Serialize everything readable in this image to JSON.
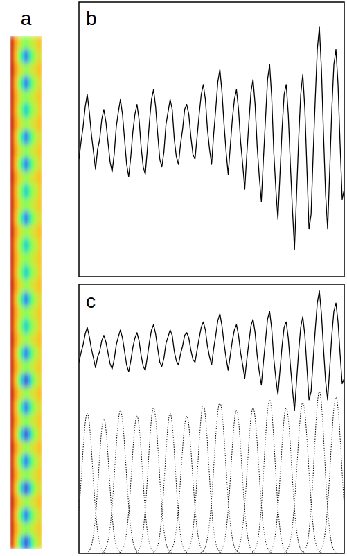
{
  "chart_data": [
    {
      "type": "heatmap",
      "title": "a",
      "zlim": [
        0,
        1
      ],
      "tick_labels": false,
      "cells": [
        [
          0.93,
          0.74,
          0.62,
          0.52,
          0.48,
          0.52,
          0.58,
          0.62,
          0.66
        ],
        [
          0.92,
          0.7,
          0.5,
          0.3,
          0.1,
          0.28,
          0.45,
          0.56,
          0.62
        ],
        [
          0.94,
          0.76,
          0.64,
          0.55,
          0.5,
          0.54,
          0.6,
          0.64,
          0.68
        ],
        [
          0.92,
          0.7,
          0.5,
          0.3,
          0.1,
          0.28,
          0.45,
          0.56,
          0.62
        ],
        [
          0.93,
          0.74,
          0.62,
          0.52,
          0.48,
          0.52,
          0.58,
          0.62,
          0.66
        ],
        [
          0.92,
          0.72,
          0.55,
          0.4,
          0.25,
          0.38,
          0.5,
          0.58,
          0.64
        ],
        [
          0.94,
          0.76,
          0.64,
          0.55,
          0.5,
          0.54,
          0.6,
          0.64,
          0.68
        ],
        [
          0.92,
          0.7,
          0.5,
          0.3,
          0.1,
          0.28,
          0.45,
          0.56,
          0.62
        ],
        [
          0.93,
          0.74,
          0.62,
          0.52,
          0.48,
          0.52,
          0.58,
          0.62,
          0.66
        ],
        [
          0.92,
          0.7,
          0.5,
          0.3,
          0.1,
          0.28,
          0.45,
          0.56,
          0.62
        ],
        [
          0.94,
          0.76,
          0.64,
          0.55,
          0.5,
          0.54,
          0.6,
          0.64,
          0.68
        ],
        [
          0.92,
          0.72,
          0.55,
          0.4,
          0.25,
          0.38,
          0.5,
          0.58,
          0.64
        ],
        [
          0.93,
          0.74,
          0.62,
          0.52,
          0.48,
          0.52,
          0.58,
          0.62,
          0.66
        ],
        [
          0.92,
          0.7,
          0.5,
          0.3,
          0.1,
          0.28,
          0.45,
          0.56,
          0.62
        ],
        [
          0.94,
          0.76,
          0.64,
          0.55,
          0.5,
          0.54,
          0.6,
          0.64,
          0.68
        ],
        [
          0.92,
          0.72,
          0.55,
          0.4,
          0.25,
          0.38,
          0.5,
          0.58,
          0.64
        ],
        [
          0.93,
          0.74,
          0.62,
          0.52,
          0.48,
          0.52,
          0.58,
          0.62,
          0.66
        ],
        [
          0.92,
          0.72,
          0.55,
          0.4,
          0.25,
          0.38,
          0.5,
          0.58,
          0.64
        ],
        [
          0.94,
          0.76,
          0.64,
          0.55,
          0.5,
          0.54,
          0.6,
          0.64,
          0.68
        ],
        [
          0.92,
          0.7,
          0.5,
          0.3,
          0.1,
          0.28,
          0.45,
          0.56,
          0.62
        ],
        [
          0.93,
          0.74,
          0.62,
          0.52,
          0.48,
          0.52,
          0.58,
          0.62,
          0.66
        ],
        [
          0.92,
          0.72,
          0.55,
          0.4,
          0.25,
          0.38,
          0.5,
          0.58,
          0.64
        ],
        [
          0.94,
          0.76,
          0.64,
          0.55,
          0.5,
          0.54,
          0.6,
          0.64,
          0.68
        ],
        [
          0.92,
          0.7,
          0.5,
          0.3,
          0.1,
          0.28,
          0.45,
          0.56,
          0.62
        ],
        [
          0.93,
          0.74,
          0.62,
          0.52,
          0.48,
          0.52,
          0.58,
          0.62,
          0.66
        ],
        [
          0.91,
          0.68,
          0.45,
          0.22,
          0.04,
          0.2,
          0.42,
          0.55,
          0.62
        ],
        [
          0.94,
          0.76,
          0.64,
          0.55,
          0.5,
          0.54,
          0.6,
          0.64,
          0.68
        ],
        [
          0.92,
          0.7,
          0.5,
          0.3,
          0.1,
          0.28,
          0.45,
          0.56,
          0.62
        ],
        [
          0.93,
          0.74,
          0.62,
          0.52,
          0.48,
          0.52,
          0.58,
          0.62,
          0.66
        ],
        [
          0.91,
          0.68,
          0.45,
          0.22,
          0.04,
          0.2,
          0.42,
          0.55,
          0.62
        ],
        [
          0.94,
          0.76,
          0.64,
          0.55,
          0.5,
          0.54,
          0.6,
          0.64,
          0.68
        ],
        [
          0.92,
          0.7,
          0.5,
          0.3,
          0.1,
          0.28,
          0.45,
          0.56,
          0.62
        ],
        [
          0.93,
          0.74,
          0.62,
          0.52,
          0.48,
          0.52,
          0.58,
          0.62,
          0.66
        ],
        [
          0.91,
          0.68,
          0.45,
          0.22,
          0.04,
          0.2,
          0.42,
          0.55,
          0.62
        ],
        [
          0.94,
          0.76,
          0.64,
          0.55,
          0.5,
          0.54,
          0.6,
          0.64,
          0.68
        ],
        [
          0.92,
          0.7,
          0.5,
          0.3,
          0.1,
          0.28,
          0.45,
          0.56,
          0.62
        ],
        [
          0.93,
          0.74,
          0.62,
          0.52,
          0.48,
          0.52,
          0.58,
          0.62,
          0.66
        ],
        [
          0.91,
          0.68,
          0.45,
          0.22,
          0.04,
          0.2,
          0.42,
          0.55,
          0.62
        ]
      ]
    },
    {
      "type": "line",
      "title": "b",
      "xlim": [
        0,
        128
      ],
      "ylim": [
        -5,
        105
      ],
      "tick_labels": false,
      "x": [
        0,
        1,
        2,
        3,
        4,
        5,
        6,
        7,
        8,
        9,
        10,
        11,
        12,
        13,
        14,
        15,
        16,
        17,
        18,
        19,
        20,
        21,
        22,
        23,
        24,
        25,
        26,
        27,
        28,
        29,
        30,
        31,
        32,
        33,
        34,
        35,
        36,
        37,
        38,
        39,
        40,
        41,
        42,
        43,
        44,
        45,
        46,
        47,
        48,
        49,
        50,
        51,
        52,
        53,
        54,
        55,
        56,
        57,
        58,
        59,
        60,
        61,
        62,
        63,
        64,
        65,
        66,
        67,
        68,
        69,
        70,
        71,
        72,
        73,
        74,
        75,
        76,
        77,
        78,
        79,
        80,
        81,
        82,
        83,
        84,
        85,
        86,
        87,
        88,
        89,
        90,
        91,
        92,
        93,
        94,
        95,
        96,
        97,
        98,
        99,
        100,
        101,
        102,
        103,
        104,
        105,
        106,
        107,
        108,
        109,
        110,
        111,
        112,
        113,
        114,
        115,
        116,
        117,
        118,
        119,
        120,
        121,
        122,
        123,
        124,
        125,
        126,
        127,
        128
      ],
      "series": [
        {
          "color": "#000000",
          "values": [
            42,
            49,
            55,
            63,
            68,
            61,
            52,
            45,
            38,
            46,
            50,
            58,
            62,
            57,
            49,
            41,
            37,
            44,
            55,
            61,
            66,
            60,
            50,
            40,
            35,
            43,
            53,
            60,
            64,
            58,
            47,
            39,
            36,
            46,
            57,
            66,
            70,
            63,
            52,
            42,
            39,
            45,
            56,
            61,
            66,
            62,
            50,
            43,
            40,
            48,
            54,
            62,
            64,
            60,
            51,
            44,
            42,
            51,
            60,
            68,
            72,
            66,
            54,
            46,
            40,
            52,
            62,
            73,
            78,
            69,
            56,
            45,
            36,
            47,
            58,
            66,
            70,
            62,
            49,
            40,
            30,
            44,
            57,
            69,
            74,
            64,
            47,
            35,
            25,
            42,
            58,
            74,
            80,
            67,
            45,
            30,
            18,
            36,
            54,
            68,
            72,
            60,
            40,
            22,
            6,
            28,
            50,
            68,
            76,
            62,
            38,
            14,
            20,
            44,
            66,
            86,
            95,
            78,
            52,
            28,
            14,
            38,
            62,
            80,
            86,
            72,
            48,
            26,
            30
          ]
        }
      ]
    },
    {
      "type": "line",
      "title": "c",
      "xlim": [
        0,
        128
      ],
      "ylim": [
        -100,
        100
      ],
      "tick_labels": false,
      "baseline": -100,
      "x": [
        0,
        1,
        2,
        3,
        4,
        5,
        6,
        7,
        8,
        9,
        10,
        11,
        12,
        13,
        14,
        15,
        16,
        17,
        18,
        19,
        20,
        21,
        22,
        23,
        24,
        25,
        26,
        27,
        28,
        29,
        30,
        31,
        32,
        33,
        34,
        35,
        36,
        37,
        38,
        39,
        40,
        41,
        42,
        43,
        44,
        45,
        46,
        47,
        48,
        49,
        50,
        51,
        52,
        53,
        54,
        55,
        56,
        57,
        58,
        59,
        60,
        61,
        62,
        63,
        64,
        65,
        66,
        67,
        68,
        69,
        70,
        71,
        72,
        73,
        74,
        75,
        76,
        77,
        78,
        79,
        80,
        81,
        82,
        83,
        84,
        85,
        86,
        87,
        88,
        89,
        90,
        91,
        92,
        93,
        94,
        95,
        96,
        97,
        98,
        99,
        100,
        101,
        102,
        103,
        104,
        105,
        106,
        107,
        108,
        109,
        110,
        111,
        112,
        113,
        114,
        115,
        116,
        117,
        118,
        119,
        120,
        121,
        122,
        123,
        124,
        125,
        126,
        127,
        128
      ],
      "series": [
        {
          "color": "#000000",
          "values": [
            42,
            49,
            55,
            63,
            68,
            61,
            52,
            45,
            38,
            46,
            50,
            58,
            62,
            57,
            49,
            41,
            37,
            44,
            55,
            61,
            66,
            60,
            50,
            40,
            35,
            43,
            53,
            60,
            64,
            58,
            47,
            39,
            36,
            46,
            57,
            66,
            70,
            63,
            52,
            42,
            39,
            45,
            56,
            61,
            66,
            62,
            50,
            43,
            40,
            48,
            54,
            62,
            64,
            60,
            51,
            44,
            42,
            51,
            60,
            68,
            72,
            66,
            54,
            46,
            40,
            52,
            62,
            73,
            78,
            69,
            56,
            45,
            36,
            47,
            58,
            66,
            70,
            62,
            49,
            40,
            30,
            44,
            57,
            69,
            74,
            64,
            47,
            35,
            25,
            42,
            58,
            74,
            80,
            67,
            45,
            30,
            18,
            36,
            54,
            68,
            72,
            60,
            40,
            22,
            6,
            28,
            50,
            68,
            76,
            62,
            38,
            14,
            20,
            44,
            66,
            86,
            95,
            78,
            52,
            28,
            14,
            38,
            62,
            80,
            86,
            72,
            48,
            26,
            30
          ]
        }
      ],
      "peaks": [
        {
          "center": 4,
          "height": 104,
          "width": 2.6
        },
        {
          "center": 12,
          "height": 100,
          "width": 2.5
        },
        {
          "center": 20,
          "height": 106,
          "width": 2.7
        },
        {
          "center": 28,
          "height": 102,
          "width": 2.6
        },
        {
          "center": 36,
          "height": 108,
          "width": 2.6
        },
        {
          "center": 44,
          "height": 104,
          "width": 2.5
        },
        {
          "center": 52,
          "height": 102,
          "width": 2.7
        },
        {
          "center": 60,
          "height": 110,
          "width": 2.6
        },
        {
          "center": 68,
          "height": 112,
          "width": 2.8
        },
        {
          "center": 76,
          "height": 106,
          "width": 2.6
        },
        {
          "center": 84,
          "height": 108,
          "width": 2.7
        },
        {
          "center": 92,
          "height": 114,
          "width": 2.6
        },
        {
          "center": 100,
          "height": 108,
          "width": 2.6
        },
        {
          "center": 108,
          "height": 112,
          "width": 2.7
        },
        {
          "center": 116,
          "height": 120,
          "width": 2.5
        },
        {
          "center": 124,
          "height": 116,
          "width": 2.6
        }
      ]
    }
  ]
}
